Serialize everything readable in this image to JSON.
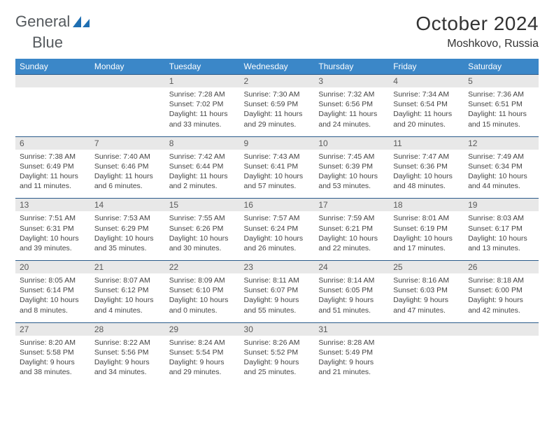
{
  "brand": {
    "part1": "General",
    "part2": "Blue"
  },
  "colors": {
    "header_bg": "#3b87c8",
    "header_text": "#ffffff",
    "daynum_bg": "#e8e8e8",
    "daynum_text": "#5a5a5a",
    "border_top": "#2a5a8a",
    "body_text": "#444444",
    "title_text": "#333333",
    "brand_text": "#555a5e",
    "logo_fill": "#1f6fb2"
  },
  "title": "October 2024",
  "location": "Moshkovo, Russia",
  "weekdays": [
    "Sunday",
    "Monday",
    "Tuesday",
    "Wednesday",
    "Thursday",
    "Friday",
    "Saturday"
  ],
  "weeks": [
    [
      null,
      null,
      {
        "n": "1",
        "sunrise": "Sunrise: 7:28 AM",
        "sunset": "Sunset: 7:02 PM",
        "daylight": "Daylight: 11 hours and 33 minutes."
      },
      {
        "n": "2",
        "sunrise": "Sunrise: 7:30 AM",
        "sunset": "Sunset: 6:59 PM",
        "daylight": "Daylight: 11 hours and 29 minutes."
      },
      {
        "n": "3",
        "sunrise": "Sunrise: 7:32 AM",
        "sunset": "Sunset: 6:56 PM",
        "daylight": "Daylight: 11 hours and 24 minutes."
      },
      {
        "n": "4",
        "sunrise": "Sunrise: 7:34 AM",
        "sunset": "Sunset: 6:54 PM",
        "daylight": "Daylight: 11 hours and 20 minutes."
      },
      {
        "n": "5",
        "sunrise": "Sunrise: 7:36 AM",
        "sunset": "Sunset: 6:51 PM",
        "daylight": "Daylight: 11 hours and 15 minutes."
      }
    ],
    [
      {
        "n": "6",
        "sunrise": "Sunrise: 7:38 AM",
        "sunset": "Sunset: 6:49 PM",
        "daylight": "Daylight: 11 hours and 11 minutes."
      },
      {
        "n": "7",
        "sunrise": "Sunrise: 7:40 AM",
        "sunset": "Sunset: 6:46 PM",
        "daylight": "Daylight: 11 hours and 6 minutes."
      },
      {
        "n": "8",
        "sunrise": "Sunrise: 7:42 AM",
        "sunset": "Sunset: 6:44 PM",
        "daylight": "Daylight: 11 hours and 2 minutes."
      },
      {
        "n": "9",
        "sunrise": "Sunrise: 7:43 AM",
        "sunset": "Sunset: 6:41 PM",
        "daylight": "Daylight: 10 hours and 57 minutes."
      },
      {
        "n": "10",
        "sunrise": "Sunrise: 7:45 AM",
        "sunset": "Sunset: 6:39 PM",
        "daylight": "Daylight: 10 hours and 53 minutes."
      },
      {
        "n": "11",
        "sunrise": "Sunrise: 7:47 AM",
        "sunset": "Sunset: 6:36 PM",
        "daylight": "Daylight: 10 hours and 48 minutes."
      },
      {
        "n": "12",
        "sunrise": "Sunrise: 7:49 AM",
        "sunset": "Sunset: 6:34 PM",
        "daylight": "Daylight: 10 hours and 44 minutes."
      }
    ],
    [
      {
        "n": "13",
        "sunrise": "Sunrise: 7:51 AM",
        "sunset": "Sunset: 6:31 PM",
        "daylight": "Daylight: 10 hours and 39 minutes."
      },
      {
        "n": "14",
        "sunrise": "Sunrise: 7:53 AM",
        "sunset": "Sunset: 6:29 PM",
        "daylight": "Daylight: 10 hours and 35 minutes."
      },
      {
        "n": "15",
        "sunrise": "Sunrise: 7:55 AM",
        "sunset": "Sunset: 6:26 PM",
        "daylight": "Daylight: 10 hours and 30 minutes."
      },
      {
        "n": "16",
        "sunrise": "Sunrise: 7:57 AM",
        "sunset": "Sunset: 6:24 PM",
        "daylight": "Daylight: 10 hours and 26 minutes."
      },
      {
        "n": "17",
        "sunrise": "Sunrise: 7:59 AM",
        "sunset": "Sunset: 6:21 PM",
        "daylight": "Daylight: 10 hours and 22 minutes."
      },
      {
        "n": "18",
        "sunrise": "Sunrise: 8:01 AM",
        "sunset": "Sunset: 6:19 PM",
        "daylight": "Daylight: 10 hours and 17 minutes."
      },
      {
        "n": "19",
        "sunrise": "Sunrise: 8:03 AM",
        "sunset": "Sunset: 6:17 PM",
        "daylight": "Daylight: 10 hours and 13 minutes."
      }
    ],
    [
      {
        "n": "20",
        "sunrise": "Sunrise: 8:05 AM",
        "sunset": "Sunset: 6:14 PM",
        "daylight": "Daylight: 10 hours and 8 minutes."
      },
      {
        "n": "21",
        "sunrise": "Sunrise: 8:07 AM",
        "sunset": "Sunset: 6:12 PM",
        "daylight": "Daylight: 10 hours and 4 minutes."
      },
      {
        "n": "22",
        "sunrise": "Sunrise: 8:09 AM",
        "sunset": "Sunset: 6:10 PM",
        "daylight": "Daylight: 10 hours and 0 minutes."
      },
      {
        "n": "23",
        "sunrise": "Sunrise: 8:11 AM",
        "sunset": "Sunset: 6:07 PM",
        "daylight": "Daylight: 9 hours and 55 minutes."
      },
      {
        "n": "24",
        "sunrise": "Sunrise: 8:14 AM",
        "sunset": "Sunset: 6:05 PM",
        "daylight": "Daylight: 9 hours and 51 minutes."
      },
      {
        "n": "25",
        "sunrise": "Sunrise: 8:16 AM",
        "sunset": "Sunset: 6:03 PM",
        "daylight": "Daylight: 9 hours and 47 minutes."
      },
      {
        "n": "26",
        "sunrise": "Sunrise: 8:18 AM",
        "sunset": "Sunset: 6:00 PM",
        "daylight": "Daylight: 9 hours and 42 minutes."
      }
    ],
    [
      {
        "n": "27",
        "sunrise": "Sunrise: 8:20 AM",
        "sunset": "Sunset: 5:58 PM",
        "daylight": "Daylight: 9 hours and 38 minutes."
      },
      {
        "n": "28",
        "sunrise": "Sunrise: 8:22 AM",
        "sunset": "Sunset: 5:56 PM",
        "daylight": "Daylight: 9 hours and 34 minutes."
      },
      {
        "n": "29",
        "sunrise": "Sunrise: 8:24 AM",
        "sunset": "Sunset: 5:54 PM",
        "daylight": "Daylight: 9 hours and 29 minutes."
      },
      {
        "n": "30",
        "sunrise": "Sunrise: 8:26 AM",
        "sunset": "Sunset: 5:52 PM",
        "daylight": "Daylight: 9 hours and 25 minutes."
      },
      {
        "n": "31",
        "sunrise": "Sunrise: 8:28 AM",
        "sunset": "Sunset: 5:49 PM",
        "daylight": "Daylight: 9 hours and 21 minutes."
      },
      null,
      null
    ]
  ]
}
